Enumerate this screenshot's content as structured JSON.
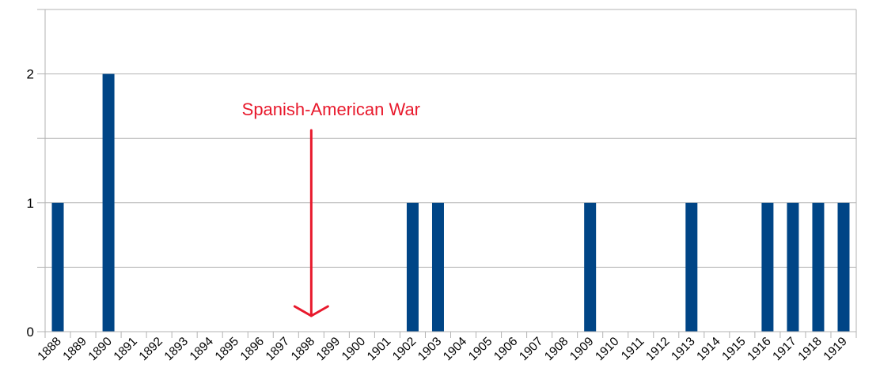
{
  "chart_data": {
    "type": "bar",
    "title": "",
    "xlabel": "",
    "ylabel": "",
    "categories": [
      "1888",
      "1889",
      "1890",
      "1891",
      "1892",
      "1893",
      "1894",
      "1895",
      "1896",
      "1897",
      "1898",
      "1899",
      "1900",
      "1901",
      "1902",
      "1903",
      "1904",
      "1905",
      "1906",
      "1907",
      "1908",
      "1909",
      "1910",
      "1911",
      "1912",
      "1913",
      "1914",
      "1915",
      "1916",
      "1917",
      "1918",
      "1919"
    ],
    "values": [
      1,
      0,
      2,
      0,
      0,
      0,
      0,
      0,
      0,
      0,
      0,
      0,
      0,
      0,
      1,
      1,
      0,
      0,
      0,
      0,
      0,
      1,
      0,
      0,
      0,
      1,
      0,
      0,
      1,
      1,
      1,
      1
    ],
    "ylim": [
      0,
      2.5
    ],
    "yticks": [
      "0",
      "1",
      "2"
    ],
    "grid": "horizontal",
    "bar_color": "#004586",
    "annotation": {
      "text": "Spanish-American War",
      "points_to": "1898",
      "color": "#e8192c"
    }
  }
}
